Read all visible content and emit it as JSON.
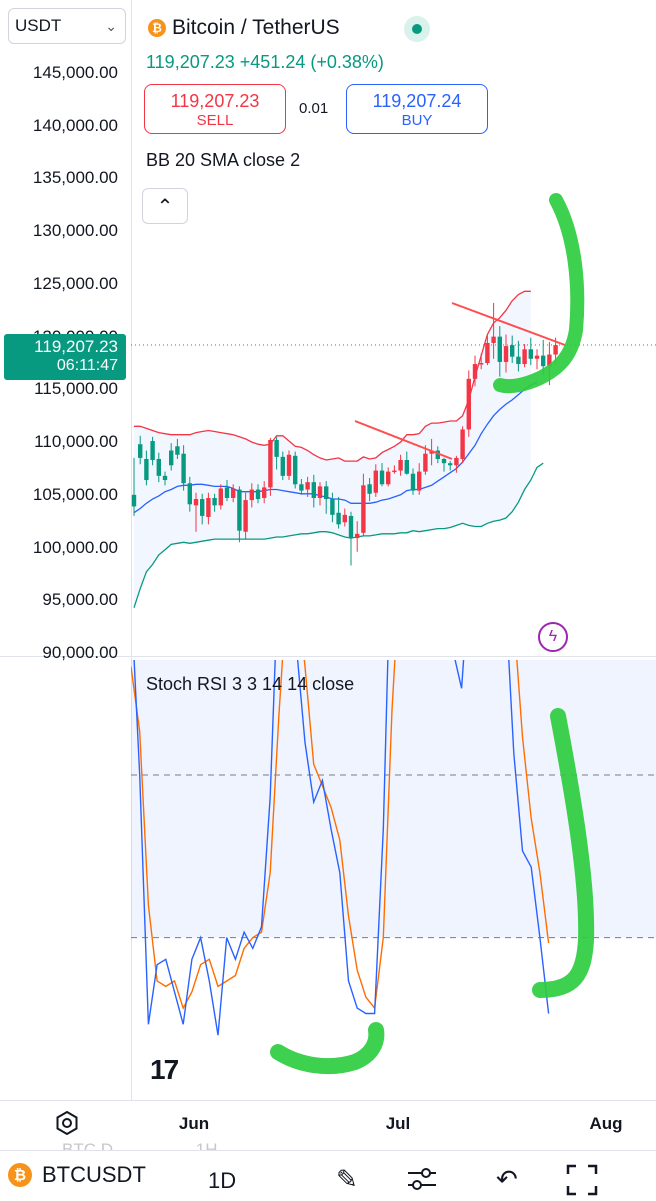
{
  "header": {
    "quote_selector": "USDT",
    "title": "Bitcoin / TetherUS",
    "last_price": "119,207.23",
    "change": "+451.24",
    "change_pct": "(+0.38%)",
    "sell_price": "119,207.23",
    "sell_label": "SELL",
    "buy_price": "119,207.24",
    "buy_label": "BUY",
    "spread": "0.01"
  },
  "indicators": {
    "bb_label": "BB 20 SMA close 2",
    "stoch_label": "Stoch RSI 3 3 14 14 close"
  },
  "price_tag": {
    "price": "119,207.23",
    "countdown": "06:11:47"
  },
  "bottom": {
    "symbol": "BTCUSDT",
    "interval": "1D",
    "ghost_symbol": "BTC.D",
    "ghost_interval": "1H"
  },
  "colors": {
    "up": "#089981",
    "down": "#f23645",
    "bb_basis": "#2962ff",
    "bb_upper": "#f23645",
    "bb_lower": "#089981",
    "stoch_k": "#2962ff",
    "stoch_d": "#ff6d00",
    "annotation": "#2ecc40",
    "trend": "#ff4d4d"
  },
  "chart_data": [
    {
      "type": "candlestick",
      "title": "Bitcoin / TetherUS",
      "x_ticks": [
        "Jun",
        "Jul",
        "Aug"
      ],
      "y_ticks": [
        "145,000.00",
        "140,000.00",
        "135,000.00",
        "130,000.00",
        "125,000.00",
        "120,000.00",
        "115,000.00",
        "110,000.00",
        "105,000.00",
        "100,000.00",
        "95,000.00",
        "90,000.00"
      ],
      "ylim": [
        89600,
        147000
      ],
      "current_price": 119207.23,
      "candles": [
        [
          103900,
          105000,
          103000,
          108500
        ],
        [
          108500,
          109800,
          107900,
          110600
        ],
        [
          106400,
          108400,
          105900,
          109200
        ],
        [
          108300,
          110100,
          107800,
          110500
        ],
        [
          106800,
          108400,
          106200,
          109000
        ],
        [
          106400,
          106800,
          105900,
          107200
        ],
        [
          107800,
          109200,
          107300,
          109900
        ],
        [
          108800,
          109600,
          108400,
          110300
        ],
        [
          106100,
          108900,
          105400,
          109700
        ],
        [
          104100,
          106100,
          103400,
          106700
        ],
        [
          104600,
          104000,
          101500,
          105200
        ],
        [
          103000,
          104600,
          102200,
          105100
        ],
        [
          104700,
          102900,
          102200,
          105200
        ],
        [
          104000,
          104700,
          103400,
          105100
        ],
        [
          105600,
          104000,
          103600,
          106000
        ],
        [
          104700,
          105700,
          104400,
          106400
        ],
        [
          105600,
          104700,
          104300,
          106000
        ],
        [
          101600,
          105500,
          100500,
          105800
        ],
        [
          104500,
          101500,
          100800,
          105200
        ],
        [
          105500,
          104500,
          103800,
          106100
        ],
        [
          104600,
          105500,
          104200,
          106000
        ],
        [
          105700,
          104700,
          104200,
          106300
        ],
        [
          110200,
          105700,
          104900,
          110400
        ],
        [
          108600,
          110200,
          107400,
          110500
        ],
        [
          106800,
          108600,
          106400,
          109100
        ],
        [
          108800,
          106800,
          106400,
          109200
        ],
        [
          106000,
          108700,
          105600,
          109100
        ],
        [
          105400,
          106000,
          105000,
          106500
        ],
        [
          106200,
          105500,
          104800,
          106700
        ],
        [
          104700,
          106200,
          103800,
          106900
        ],
        [
          105800,
          104700,
          104000,
          106200
        ],
        [
          104600,
          105800,
          103200,
          106300
        ],
        [
          103100,
          104600,
          102400,
          105200
        ],
        [
          102200,
          103300,
          101800,
          104800
        ],
        [
          103100,
          102400,
          102000,
          103700
        ],
        [
          100900,
          103000,
          98300,
          103400
        ],
        [
          101300,
          100900,
          99600,
          102500
        ],
        [
          105900,
          101400,
          101100,
          107000
        ],
        [
          105100,
          106000,
          104400,
          106600
        ],
        [
          107300,
          105200,
          104800,
          107900
        ],
        [
          106000,
          107300,
          105800,
          108000
        ],
        [
          107200,
          106000,
          105800,
          107600
        ],
        [
          107300,
          107200,
          107000,
          107800
        ],
        [
          108300,
          107300,
          106800,
          108800
        ],
        [
          107000,
          108300,
          106900,
          109100
        ],
        [
          105400,
          107000,
          105000,
          107500
        ],
        [
          107200,
          105400,
          105000,
          108000
        ],
        [
          108900,
          107200,
          106900,
          109700
        ],
        [
          109200,
          108900,
          107800,
          110300
        ],
        [
          108400,
          109200,
          108000,
          109600
        ],
        [
          108000,
          108400,
          107200,
          108500
        ],
        [
          107800,
          108000,
          107300,
          108200
        ],
        [
          108500,
          107800,
          107100,
          108700
        ],
        [
          111200,
          108400,
          108000,
          111500
        ],
        [
          116000,
          111200,
          110500,
          116800
        ],
        [
          117400,
          116000,
          115300,
          118200
        ],
        [
          117500,
          117400,
          116900,
          118400
        ],
        [
          119400,
          117500,
          117300,
          120100
        ],
        [
          120000,
          119400,
          117900,
          123200
        ],
        [
          117600,
          120000,
          116200,
          121000
        ],
        [
          119100,
          117600,
          116600,
          120200
        ],
        [
          118100,
          119200,
          117500,
          120100
        ],
        [
          117400,
          118100,
          116700,
          119600
        ],
        [
          118800,
          117400,
          117100,
          119300
        ],
        [
          117900,
          118800,
          117300,
          119900
        ],
        [
          118200,
          117900,
          116900,
          118800
        ],
        [
          117200,
          118200,
          116400,
          119700
        ],
        [
          118300,
          117200,
          115400,
          119500
        ],
        [
          119200,
          118300,
          117400,
          119900
        ]
      ],
      "bb_upper": [
        111500,
        111500,
        111300,
        111100,
        110900,
        110800,
        110700,
        110700,
        110700,
        110700,
        110900,
        111000,
        111100,
        111000,
        110900,
        110800,
        110700,
        110500,
        110300,
        110000,
        109800,
        109700,
        109800,
        110600,
        110600,
        110100,
        109600,
        109500,
        109200,
        108800,
        108500,
        108300,
        108400,
        108500,
        108200,
        108200,
        108200,
        108600,
        108400,
        108500,
        109000,
        109300,
        109600,
        110000,
        110700,
        110700,
        110800,
        111500,
        111800,
        111800,
        111900,
        112000,
        112000,
        112500,
        114000,
        116200,
        118200,
        120200,
        121300,
        121800,
        122500,
        123400,
        124000,
        124300,
        124300
      ],
      "bb_basis": [
        103300,
        103700,
        104200,
        104600,
        104900,
        105300,
        105500,
        105800,
        105900,
        105900,
        106000,
        106000,
        105900,
        105800,
        105800,
        105800,
        105600,
        105300,
        105300,
        105300,
        105300,
        105400,
        105500,
        105500,
        105400,
        105300,
        105200,
        105100,
        105100,
        105100,
        104900,
        104800,
        104600,
        104600,
        104500,
        104200,
        104200,
        104200,
        104200,
        104300,
        104500,
        104600,
        104800,
        105000,
        105400,
        105500,
        105500,
        105700,
        105900,
        106300,
        106700,
        107100,
        107500,
        108100,
        108900,
        109700,
        110800,
        111700,
        112500,
        113100,
        113600,
        114000,
        114500,
        115000,
        115400,
        115700
      ],
      "bb_lower": [
        94300,
        96100,
        97700,
        98400,
        99300,
        99800,
        100300,
        100400,
        100500,
        100400,
        100500,
        100600,
        100700,
        100800,
        100800,
        100800,
        100800,
        100800,
        100800,
        100800,
        100800,
        100800,
        100900,
        101000,
        101000,
        101100,
        101200,
        101300,
        101300,
        101400,
        101500,
        101500,
        101400,
        101200,
        101000,
        100900,
        101000,
        101100,
        101100,
        101200,
        101300,
        101300,
        101300,
        101400,
        101400,
        101600,
        101500,
        101600,
        101700,
        101800,
        101800,
        101900,
        102100,
        102300,
        102100,
        102000,
        102000,
        102300,
        102500,
        102600,
        102800,
        103400,
        104300,
        105500,
        106400,
        107600,
        108000
      ]
    },
    {
      "type": "line",
      "title": "Stoch RSI 3 3 14 14 close",
      "ylim": [
        -8,
        108
      ],
      "bands": [
        80,
        50,
        20
      ],
      "series": [
        {
          "values": [
            83,
            50,
            4,
            15,
            16,
            10,
            4,
            16,
            20,
            12,
            2,
            20,
            16,
            21,
            18,
            22,
            46,
            90,
            100,
            74,
            56,
            45,
            49,
            40,
            32,
            12,
            7,
            6,
            6,
            40,
            100,
            100,
            100,
            81,
            84,
            80,
            85,
            73,
            66,
            89,
            100,
            100,
            99,
            84,
            54,
            36,
            33,
            20,
            6
          ]
        },
        {
          "values": [
            70,
            58,
            26,
            12,
            11,
            12,
            7,
            10,
            15,
            16,
            11,
            12,
            13,
            18,
            20,
            21,
            32,
            61,
            86,
            86,
            70,
            52,
            48,
            44,
            38,
            24,
            14,
            9,
            7,
            20,
            62,
            90,
            100,
            93,
            86,
            82,
            82,
            78,
            74,
            78,
            92,
            100,
            100,
            95,
            79,
            57,
            42,
            32,
            19
          ]
        }
      ]
    }
  ]
}
